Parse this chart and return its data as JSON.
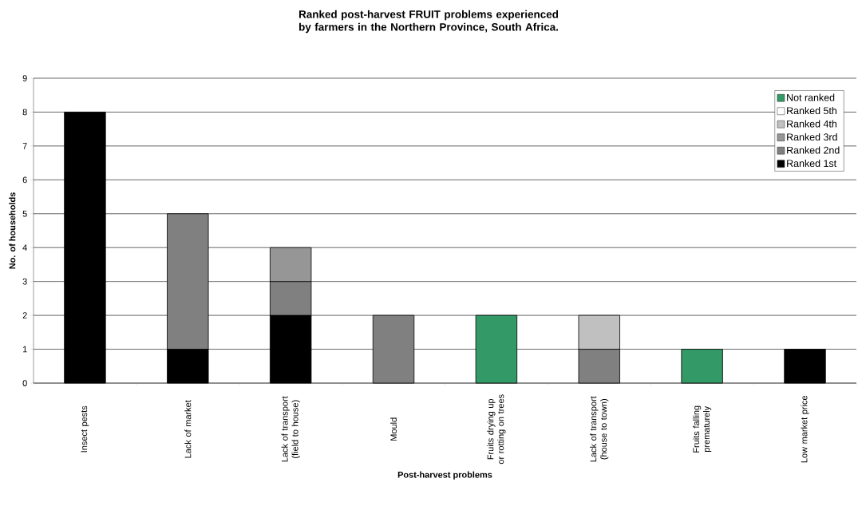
{
  "chart_data": {
    "type": "bar",
    "stacked": true,
    "title": "Ranked post-harvest FRUIT problems experienced by farmers in the Northern Province, South Africa.",
    "xlabel": "Post-harvest problems",
    "ylabel": "No. of households",
    "categories": [
      "Insect pests",
      "Lack of market",
      "Lack of transport (field to house)",
      "Mould",
      "Fruits drying up or rotting on trees",
      "Lack of transport (house to town)",
      "Fruits falling prematurely",
      "Low market price"
    ],
    "series": [
      {
        "name": "Ranked 1st",
        "color": "#000000",
        "values": [
          8,
          1,
          2,
          null,
          null,
          null,
          null,
          1
        ]
      },
      {
        "name": "Ranked 2nd",
        "color": "#808080",
        "values": [
          null,
          4,
          1,
          2,
          null,
          1,
          null,
          null
        ]
      },
      {
        "name": "Ranked 3rd",
        "color": "#969696",
        "values": [
          null,
          null,
          1,
          null,
          null,
          null,
          null,
          null
        ]
      },
      {
        "name": "Ranked 4th",
        "color": "#c0c0c0",
        "values": [
          null,
          null,
          null,
          null,
          null,
          1,
          null,
          null
        ]
      },
      {
        "name": "Ranked 5th",
        "color": "#ffffff",
        "values": [
          null,
          null,
          null,
          null,
          null,
          null,
          null,
          null
        ]
      },
      {
        "name": "Not ranked",
        "color": "#339966",
        "values": [
          null,
          null,
          null,
          null,
          2,
          null,
          1,
          null
        ]
      }
    ],
    "ylim": [
      0,
      9
    ],
    "yticks": [
      0,
      1,
      2,
      3,
      4,
      5,
      6,
      7,
      8,
      9
    ],
    "grid": "y",
    "legend": "top right"
  }
}
